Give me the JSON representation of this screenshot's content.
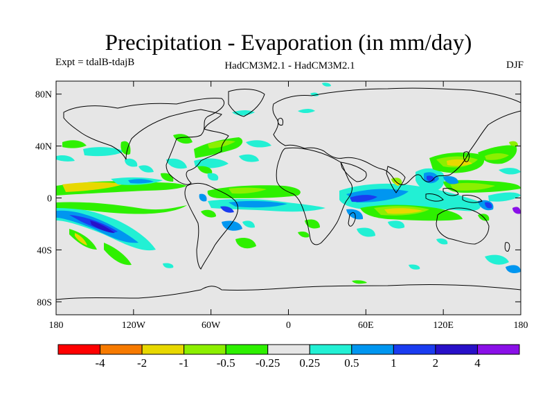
{
  "header": {
    "title": "Precipitation - Evaporation (in mm/day)",
    "experiment": "Expt = tdalB-tdajB",
    "model": "HadCM3M2.1 - HadCM3M2.1",
    "season": "DJF"
  },
  "axes": {
    "lat_ticks": [
      "80N",
      "40N",
      "0",
      "40S",
      "80S"
    ],
    "lon_ticks": [
      "180",
      "120W",
      "60W",
      "0",
      "60E",
      "120E",
      "180"
    ]
  },
  "colorbar": {
    "colors": [
      "#ff0000",
      "#f77a00",
      "#e8d800",
      "#8cef00",
      "#2ef000",
      "#e6e6e6",
      "#22f0d4",
      "#0096f0",
      "#1a3cf0",
      "#2810c8",
      "#8a10e8"
    ],
    "labels": [
      "-4",
      "-2",
      "-1",
      "-0.5",
      "-0.25",
      "0.25",
      "0.5",
      "1",
      "2",
      "4"
    ]
  },
  "map": {
    "background_color": "#e6e6e6"
  }
}
